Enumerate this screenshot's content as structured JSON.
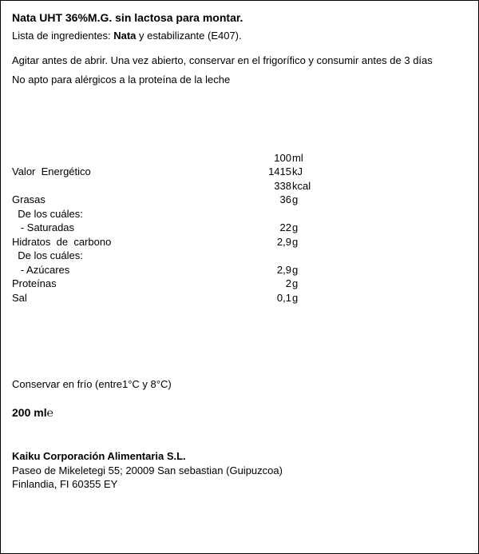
{
  "title": "Nata UHT 36%M.G. sin lactosa para montar.",
  "ingredients_prefix": "Lista de ingredientes: ",
  "ingredients_bold": "Nata",
  "ingredients_suffix": " y estabilizante (E407).",
  "instructions": "Agitar antes de abrir. Una vez abierto, conservar en el frigorífico y consumir antes de 3 días",
  "allergen": "No apto para alérgicos a la proteína de la leche",
  "nutri": {
    "header": {
      "label": "",
      "value": "100",
      "unit": "ml"
    },
    "rows": [
      {
        "label": "Valor  Energético",
        "value": "1415",
        "unit": "kJ"
      },
      {
        "label": "",
        "value": "338",
        "unit": "kcal"
      },
      {
        "label": "Grasas",
        "value": "36",
        "unit": "g"
      },
      {
        "label": "  De los cuáles:",
        "value": "",
        "unit": ""
      },
      {
        "label": "   - Saturadas",
        "value": "22",
        "unit": "g"
      },
      {
        "label": "Hidratos  de  carbono",
        "value": "2,9",
        "unit": "g"
      },
      {
        "label": "  De los cuáles:",
        "value": "",
        "unit": ""
      },
      {
        "label": "   - Azúcares",
        "value": "2,9",
        "unit": "g"
      },
      {
        "label": "Proteínas",
        "value": "2",
        "unit": "g"
      },
      {
        "label": "Sal",
        "value": "0,1",
        "unit": "g"
      }
    ]
  },
  "storage": "Conservar en frío (entre1°C y 8°C)",
  "volume": "200 ml℮",
  "company": {
    "name": "Kaiku Corporación Alimentaria S.L.",
    "address1": "Paseo de Mikeletegi 55; 20009 San sebastian (Guipuzcoa)",
    "address2": "Finlandia,  FI 60355 EY"
  }
}
